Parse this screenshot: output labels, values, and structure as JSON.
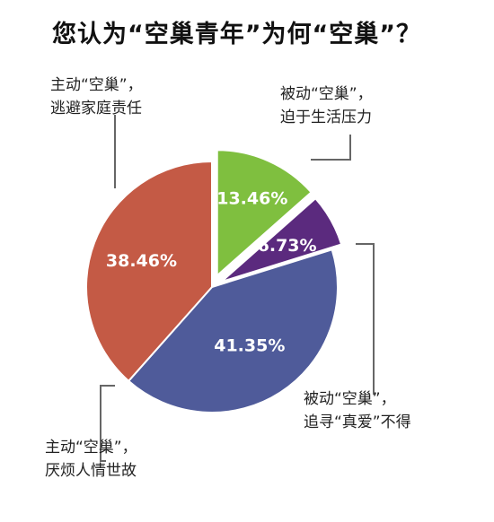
{
  "chart_data": {
    "type": "pie",
    "title": "您认为“空巢青年”为何“空巢”？",
    "slices": [
      {
        "label_line1": "被动“空巢”，",
        "label_line2": "迫于生活压力",
        "value": 13.46,
        "value_label": "13.46%",
        "color": "#7fbf3f"
      },
      {
        "label_line1": "被动“空巢”，",
        "label_line2": "追寻“真爱”不得",
        "value": 6.73,
        "value_label": "6.73%",
        "color": "#5b2a7e"
      },
      {
        "label_line1": "主动“空巢”，",
        "label_line2": "厌烦人情世故",
        "value": 41.35,
        "value_label": "41.35%",
        "color": "#4f5b9a"
      },
      {
        "label_line1": "主动“空巢”，",
        "label_line2": "逃避家庭责任",
        "value": 38.46,
        "value_label": "38.46%",
        "color": "#c45a45"
      }
    ]
  }
}
